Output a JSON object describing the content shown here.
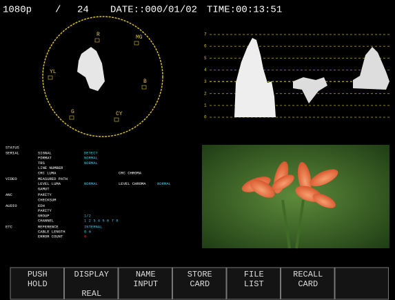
{
  "header": {
    "format": "1080p",
    "separator": "/",
    "frame_rate": "24",
    "date": "DATE::000/01/02",
    "time": "TIME:00:13:51"
  },
  "vectorscope": {
    "labels": [
      "R",
      "MG",
      "YL",
      "B",
      "G",
      "CY"
    ]
  },
  "waveform": {
    "scale": [
      "7",
      "6",
      "5",
      "4",
      "3",
      "2",
      "1",
      "0"
    ]
  },
  "status": {
    "title": "STATUS",
    "sections": [
      {
        "title": "SERIAL",
        "rows": [
          {
            "label": "SIGNAL",
            "value": "DETECT"
          },
          {
            "label": "FORMAT",
            "value": "NORMAL"
          },
          {
            "label": "TRS",
            "value": "NORMAL"
          },
          {
            "label": "LINE NUMBER"
          },
          {
            "label": "CRC LUMA",
            "extra": "CRC CHROMA"
          }
        ]
      },
      {
        "title": "VIDEO",
        "rows": [
          {
            "label": "MEASURED PATH"
          },
          {
            "label": "LEVEL LUMA",
            "value": "NORMAL",
            "extra": "LEVEL CHROMA",
            "extra_value": "NORMAL"
          },
          {
            "label": "GAMUT"
          }
        ]
      },
      {
        "title": "ANC",
        "rows": [
          {
            "label": "PARITY"
          },
          {
            "label": "CHECKSUM"
          }
        ]
      },
      {
        "title": "AUDIO",
        "rows": [
          {
            "label": "EDH"
          },
          {
            "label": "PARITY"
          },
          {
            "label": "GROUP",
            "value": "1/2"
          },
          {
            "label": "CHANNEL",
            "value": "1 2 3 4 5 6 7 8"
          }
        ]
      },
      {
        "title": "ETC",
        "rows": [
          {
            "label": "REFERENCE",
            "value": "INTERNAL"
          },
          {
            "label": "CABLE LENGTH",
            "value": "0 m"
          },
          {
            "label": "ERROR COUNT",
            "value": "0",
            "alert": true
          }
        ]
      }
    ]
  },
  "softkeys": [
    {
      "lines": [
        "PUSH",
        "HOLD"
      ]
    },
    {
      "lines": [
        "DISPLAY"
      ],
      "sub": "REAL"
    },
    {
      "lines": [
        "NAME",
        "INPUT"
      ]
    },
    {
      "lines": [
        "STORE",
        "CARD"
      ]
    },
    {
      "lines": [
        "FILE",
        "LIST"
      ]
    },
    {
      "lines": [
        "RECALL",
        "CARD"
      ]
    },
    {
      "lines": []
    }
  ]
}
